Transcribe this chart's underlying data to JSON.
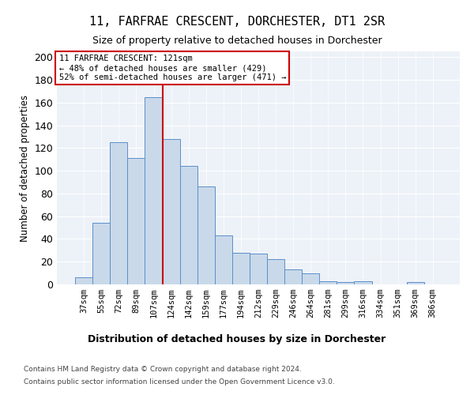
{
  "title": "11, FARFRAE CRESCENT, DORCHESTER, DT1 2SR",
  "subtitle": "Size of property relative to detached houses in Dorchester",
  "xlabel": "Distribution of detached houses by size in Dorchester",
  "ylabel": "Number of detached properties",
  "bar_labels": [
    "37sqm",
    "55sqm",
    "72sqm",
    "89sqm",
    "107sqm",
    "124sqm",
    "142sqm",
    "159sqm",
    "177sqm",
    "194sqm",
    "212sqm",
    "229sqm",
    "246sqm",
    "264sqm",
    "281sqm",
    "299sqm",
    "316sqm",
    "334sqm",
    "351sqm",
    "369sqm",
    "386sqm"
  ],
  "bar_values": [
    6,
    54,
    125,
    111,
    165,
    128,
    104,
    86,
    43,
    28,
    27,
    22,
    13,
    10,
    3,
    2,
    3,
    0,
    0,
    2,
    0
  ],
  "bar_color": "#c9d9ea",
  "bar_edge_color": "#5b8fc9",
  "background_color": "#edf2f8",
  "grid_color": "#ffffff",
  "vline_index": 5,
  "vline_color": "#cc0000",
  "annotation_line1": "11 FARFRAE CRESCENT: 121sqm",
  "annotation_line2": "← 48% of detached houses are smaller (429)",
  "annotation_line3": "52% of semi-detached houses are larger (471) →",
  "annotation_box_edgecolor": "#cc0000",
  "ylim": [
    0,
    205
  ],
  "yticks": [
    0,
    20,
    40,
    60,
    80,
    100,
    120,
    140,
    160,
    180,
    200
  ],
  "footer_line1": "Contains HM Land Registry data © Crown copyright and database right 2024.",
  "footer_line2": "Contains public sector information licensed under the Open Government Licence v3.0."
}
